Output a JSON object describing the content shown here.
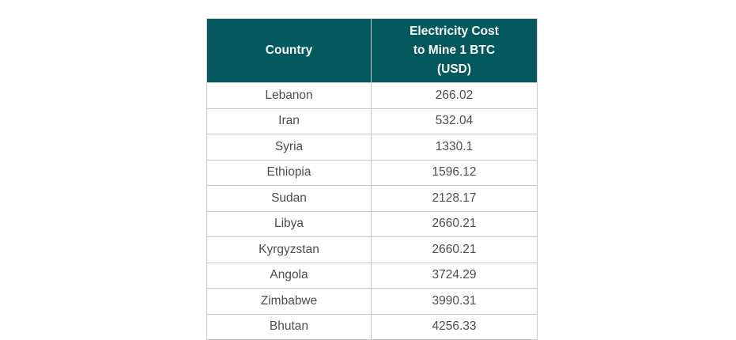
{
  "table": {
    "columns": [
      "Country",
      "Electricity Cost to Mine 1 BTC (USD)"
    ],
    "rows": [
      {
        "country": "Lebanon",
        "cost": "266.02"
      },
      {
        "country": "Iran",
        "cost": "532.04"
      },
      {
        "country": "Syria",
        "cost": "1330.1"
      },
      {
        "country": "Ethiopia",
        "cost": "1596.12"
      },
      {
        "country": "Sudan",
        "cost": "2128.17"
      },
      {
        "country": "Libya",
        "cost": "2660.21"
      },
      {
        "country": "Kyrgyzstan",
        "cost": "2660.21"
      },
      {
        "country": "Angola",
        "cost": "3724.29"
      },
      {
        "country": "Zimbabwe",
        "cost": "3990.31"
      },
      {
        "country": "Bhutan",
        "cost": "4256.33"
      }
    ]
  },
  "colors": {
    "header_bg": "#04595F",
    "header_text": "#FFFFFF",
    "body_text": "#4D4D4D",
    "border": "#C9C9C9",
    "background": "#FFFFFF"
  },
  "chart_data": {
    "type": "table",
    "title": "",
    "columns": [
      "Country",
      "Electricity Cost to Mine 1 BTC (USD)"
    ],
    "categories": [
      "Lebanon",
      "Iran",
      "Syria",
      "Ethiopia",
      "Sudan",
      "Libya",
      "Kyrgyzstan",
      "Angola",
      "Zimbabwe",
      "Bhutan"
    ],
    "values": [
      266.02,
      532.04,
      1330.1,
      1596.12,
      2128.17,
      2660.21,
      2660.21,
      3724.29,
      3990.31,
      4256.33
    ],
    "layout": {
      "header_style": "teal-bold-white",
      "cell_alignment": "center",
      "grid": true
    }
  }
}
